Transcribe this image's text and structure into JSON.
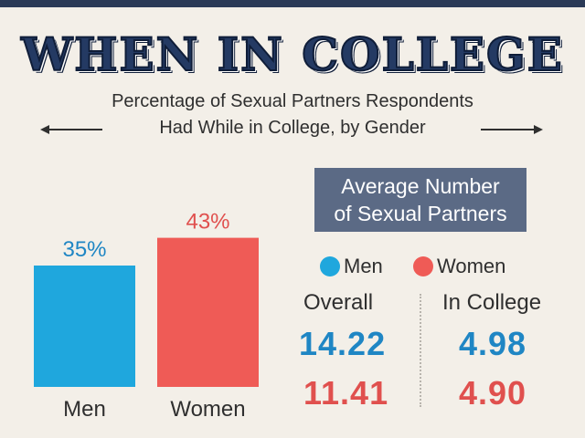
{
  "title": "WHEN IN COLLEGE",
  "subtitle_line1": "Percentage of Sexual Partners Respondents",
  "subtitle_line2": "Had While in College, by Gender",
  "colors": {
    "men": "#1fa7dd",
    "women": "#ef5b56",
    "men_text": "#1f86c4",
    "women_text": "#e0504e",
    "title": "#243a63",
    "panel": "#5b6a85"
  },
  "chart_data": {
    "type": "bar",
    "title": "Percentage of Sexual Partners Respondents Had While in College, by Gender",
    "categories": [
      "Men",
      "Women"
    ],
    "values": [
      35,
      43
    ],
    "value_labels": [
      "35%",
      "43%"
    ],
    "ylim": [
      0,
      50
    ]
  },
  "average_panel": {
    "heading_line1": "Average Number",
    "heading_line2": "of Sexual Partners",
    "legend": {
      "men": "Men",
      "women": "Women"
    },
    "columns": {
      "overall": "Overall",
      "in_college": "In College"
    },
    "men": {
      "overall": "14.22",
      "in_college": "4.98"
    },
    "women": {
      "overall": "11.41",
      "in_college": "4.90"
    }
  }
}
